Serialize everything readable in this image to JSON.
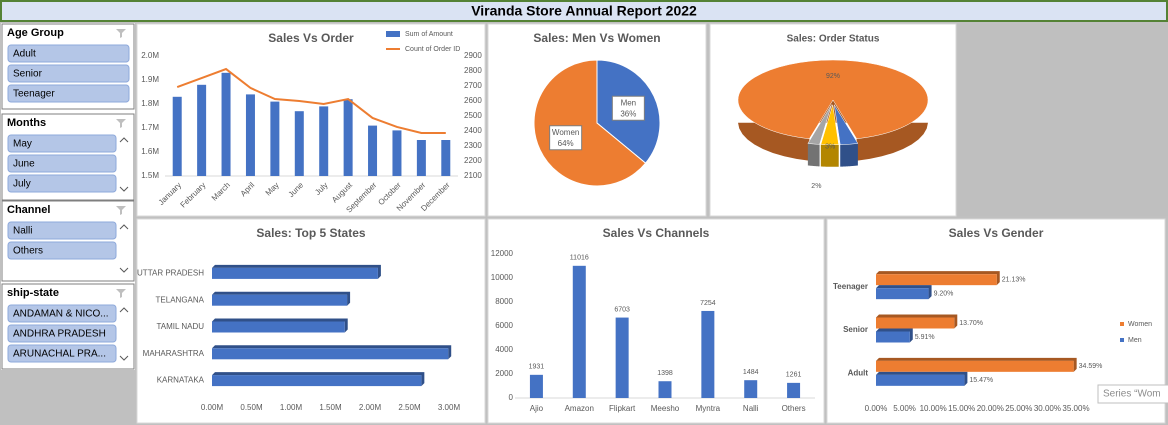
{
  "header": {
    "title": "Viranda Store Annual Report 2022"
  },
  "slicers": [
    {
      "title": "Age Group",
      "items": [
        "Adult",
        "Senior",
        "Teenager"
      ]
    },
    {
      "title": "Months",
      "items": [
        "May",
        "June",
        "July"
      ]
    },
    {
      "title": "Channel",
      "items": [
        "Nalli",
        "Others"
      ]
    },
    {
      "title": "ship-state",
      "items": [
        "ANDAMAN & NICO...",
        "ANDHRA PRADESH",
        "ARUNACHAL PRA..."
      ]
    }
  ],
  "tooltip": "Series “Wom",
  "chart_data": [
    {
      "type": "combo",
      "title": "Sales Vs Order",
      "categories": [
        "January",
        "February",
        "March",
        "April",
        "May",
        "June",
        "July",
        "August",
        "September",
        "October",
        "November",
        "December"
      ],
      "series": [
        {
          "name": "Sum of Amount",
          "type": "bar",
          "color": "#4472c4",
          "values": [
            1830000,
            1880000,
            1930000,
            1840000,
            1810000,
            1770000,
            1790000,
            1820000,
            1710000,
            1690000,
            1650000,
            1650000
          ]
        },
        {
          "name": "Count of Order ID",
          "type": "line",
          "axis": "y2",
          "color": "#ed7d31",
          "values": [
            2693,
            2753,
            2813,
            2687,
            2613,
            2600,
            2580,
            2613,
            2487,
            2427,
            2387,
            2387
          ]
        }
      ],
      "ylim": [
        1500000,
        2000000
      ],
      "yticks": [
        {
          "value": 1500000,
          "label": "1.5M"
        },
        {
          "value": 1600000,
          "label": "1.6M"
        },
        {
          "value": 1700000,
          "label": "1.7M"
        },
        {
          "value": 1800000,
          "label": "1.8M"
        },
        {
          "value": 1900000,
          "label": "1.9M"
        },
        {
          "value": 2000000,
          "label": "2.0M"
        }
      ],
      "y2lim": [
        2100,
        2900
      ],
      "y2ticks": [
        2100,
        2200,
        2300,
        2400,
        2500,
        2600,
        2700,
        2800,
        2900
      ]
    },
    {
      "type": "pie",
      "title": "Sales: Men Vs Women",
      "categories": [
        "Men",
        "Women"
      ],
      "values": [
        36,
        64
      ],
      "value_labels": [
        "36%",
        "64%"
      ],
      "colors": [
        "#4472c4",
        "#ed7d31"
      ]
    },
    {
      "type": "pie3d",
      "title": "Sales: Order Status",
      "categories": [
        null,
        null,
        null,
        null
      ],
      "values": [
        92,
        3,
        3,
        2
      ],
      "value_labels": [
        "92%",
        null,
        "3%",
        "2%"
      ],
      "colors": [
        "#ed7d31",
        "#4472c4",
        "#ffc000",
        "#a5a5a5"
      ]
    },
    {
      "type": "barh",
      "title": "Sales: Top 5 States",
      "categories": [
        "UTTAR PRADESH",
        "TELANGANA",
        "TAMIL NADU",
        "MAHARASHTRA",
        "KARNATAKA"
      ],
      "values": [
        2100000,
        1710000,
        1680000,
        2990000,
        2650000
      ],
      "color": "#4472c4",
      "xlim": [
        0,
        3000000
      ],
      "xticks": [
        {
          "value": 0,
          "label": "0.00M"
        },
        {
          "value": 500000,
          "label": "0.50M"
        },
        {
          "value": 1000000,
          "label": "1.00M"
        },
        {
          "value": 1500000,
          "label": "1.50M"
        },
        {
          "value": 2000000,
          "label": "2.00M"
        },
        {
          "value": 2500000,
          "label": "2.50M"
        },
        {
          "value": 3000000,
          "label": "3.00M"
        }
      ]
    },
    {
      "type": "bar",
      "title": "Sales Vs Channels",
      "categories": [
        "Ajio",
        "Amazon",
        "Flipkart",
        "Meesho",
        "Myntra",
        "Nalli",
        "Others"
      ],
      "values": [
        1931,
        11016,
        6703,
        1398,
        7254,
        1484,
        1261
      ],
      "color": "#4472c4",
      "ylim": [
        0,
        12000
      ],
      "yticks": [
        0,
        2000,
        4000,
        6000,
        8000,
        10000,
        12000
      ]
    },
    {
      "type": "barh",
      "title": "Sales Vs Gender",
      "categories": [
        "Teenager",
        "Senior",
        "Adult"
      ],
      "series": [
        {
          "name": "Women",
          "color": "#ed7d31",
          "values": [
            21.13,
            13.7,
            34.59
          ],
          "value_labels": [
            "21.13%",
            "13.70%",
            "34.59%"
          ]
        },
        {
          "name": "Men",
          "color": "#4472c4",
          "values": [
            9.2,
            5.91,
            15.47
          ],
          "value_labels": [
            "9.20%",
            "5.91%",
            "15.47%"
          ]
        }
      ],
      "legend": "right",
      "xlim": [
        0,
        35
      ],
      "xticks": [
        {
          "value": 0,
          "label": "0.00%"
        },
        {
          "value": 5,
          "label": "5.00%"
        },
        {
          "value": 10,
          "label": "10.00%"
        },
        {
          "value": 15,
          "label": "15.00%"
        },
        {
          "value": 20,
          "label": "20.00%"
        },
        {
          "value": 25,
          "label": "25.00%"
        },
        {
          "value": 30,
          "label": "30.00%"
        },
        {
          "value": 35,
          "label": "35.00%"
        }
      ]
    }
  ]
}
